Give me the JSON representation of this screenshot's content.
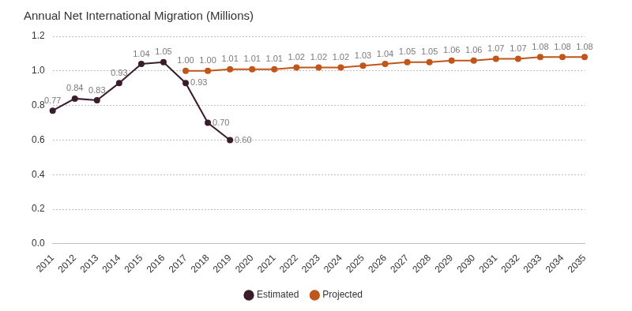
{
  "chart_data": {
    "type": "line",
    "title": "Annual Net International Migration (Millions)",
    "categories": [
      "2011",
      "2012",
      "2013",
      "2014",
      "2015",
      "2016",
      "2017",
      "2018",
      "2019",
      "2020",
      "2021",
      "2022",
      "2023",
      "2024",
      "2025",
      "2026",
      "2027",
      "2028",
      "2029",
      "2030",
      "2031",
      "2032",
      "2033",
      "2034",
      "2035"
    ],
    "series": [
      {
        "name": "Estimated",
        "color": "#3b1c2c",
        "marker": "circle",
        "values": [
          0.77,
          0.84,
          0.83,
          0.93,
          1.04,
          1.05,
          0.93,
          0.7,
          0.6,
          null,
          null,
          null,
          null,
          null,
          null,
          null,
          null,
          null,
          null,
          null,
          null,
          null,
          null,
          null,
          null
        ],
        "value_labels": [
          "0.77",
          "0.84",
          "0.83",
          "0.93",
          "1.04",
          "1.05",
          "0.93",
          "0.70",
          "0.60",
          null,
          null,
          null,
          null,
          null,
          null,
          null,
          null,
          null,
          null,
          null,
          null,
          null,
          null,
          null,
          null
        ]
      },
      {
        "name": "Projected",
        "color": "#c0561b",
        "marker": "circle",
        "values": [
          null,
          null,
          null,
          null,
          null,
          null,
          1.0,
          1.0,
          1.01,
          1.01,
          1.01,
          1.02,
          1.02,
          1.02,
          1.03,
          1.04,
          1.05,
          1.05,
          1.06,
          1.06,
          1.07,
          1.07,
          1.08,
          1.08,
          1.08
        ],
        "value_labels": [
          null,
          null,
          null,
          null,
          null,
          null,
          "1.00",
          "1.00",
          "1.01",
          "1.01",
          "1.01",
          "1.02",
          "1.02",
          "1.02",
          "1.03",
          "1.04",
          "1.05",
          "1.05",
          "1.06",
          "1.06",
          "1.07",
          "1.07",
          "1.08",
          "1.08",
          "1.08"
        ]
      }
    ],
    "ylim": [
      0,
      1.2
    ],
    "yticks": [
      {
        "value": 0,
        "label": "0.0"
      },
      {
        "value": 0.2,
        "label": "0.2"
      },
      {
        "value": 0.4,
        "label": "0.4"
      },
      {
        "value": 0.6,
        "label": "0.6"
      },
      {
        "value": 0.8,
        "label": "0.8"
      },
      {
        "value": 1.0,
        "label": "1.0"
      },
      {
        "value": 1.2,
        "label": "1.2"
      }
    ],
    "grid": true,
    "legend": "bottom",
    "data_labels": true
  }
}
